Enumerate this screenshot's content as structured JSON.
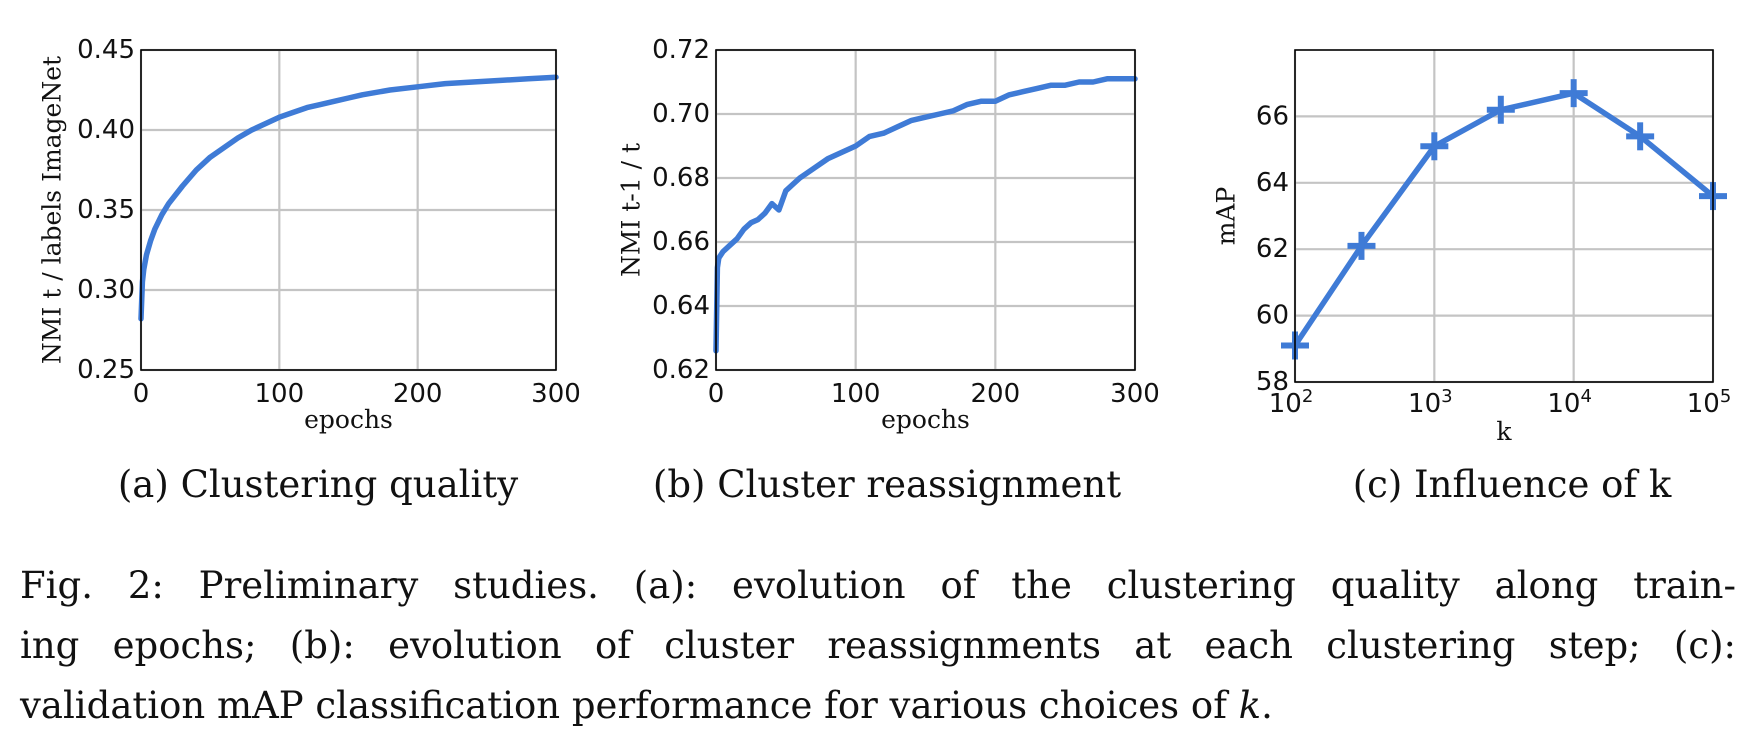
{
  "colors": {
    "series": "#3f7bd6",
    "grid": "#c4c4c4",
    "axis": "#000000"
  },
  "chart_data": [
    {
      "type": "line",
      "subcaption": "(a) Clustering quality",
      "xlabel": "epochs",
      "ylabel": "NMI t / labels ImageNet",
      "xlim": [
        0,
        300
      ],
      "ylim": [
        0.25,
        0.45
      ],
      "xticks": [
        0,
        100,
        200,
        300
      ],
      "xtick_labels": [
        "0",
        "100",
        "200",
        "300"
      ],
      "yticks": [
        0.25,
        0.3,
        0.35,
        0.4,
        0.45
      ],
      "ytick_labels": [
        "0.25",
        "0.30",
        "0.35",
        "0.40",
        "0.45"
      ],
      "grid": true,
      "series": [
        {
          "x": [
            0,
            1,
            2,
            4,
            7,
            10,
            15,
            20,
            30,
            40,
            50,
            60,
            70,
            80,
            90,
            100,
            110,
            120,
            130,
            140,
            150,
            160,
            180,
            200,
            220,
            240,
            260,
            280,
            300
          ],
          "y": [
            0.282,
            0.305,
            0.313,
            0.322,
            0.331,
            0.338,
            0.347,
            0.354,
            0.365,
            0.375,
            0.383,
            0.389,
            0.395,
            0.4,
            0.404,
            0.408,
            0.411,
            0.414,
            0.416,
            0.418,
            0.42,
            0.422,
            0.425,
            0.427,
            0.429,
            0.43,
            0.431,
            0.432,
            0.433
          ]
        }
      ]
    },
    {
      "type": "line",
      "subcaption": "(b) Cluster reassignment",
      "xlabel": "epochs",
      "ylabel": "NMI t-1 / t",
      "xlim": [
        0,
        300
      ],
      "ylim": [
        0.62,
        0.72
      ],
      "xticks": [
        0,
        100,
        200,
        300
      ],
      "xtick_labels": [
        "0",
        "100",
        "200",
        "300"
      ],
      "yticks": [
        0.62,
        0.64,
        0.66,
        0.68,
        0.7,
        0.72
      ],
      "ytick_labels": [
        "0.62",
        "0.64",
        "0.66",
        "0.68",
        "0.70",
        "0.72"
      ],
      "grid": true,
      "series": [
        {
          "x": [
            0,
            1,
            2,
            5,
            10,
            15,
            20,
            25,
            30,
            35,
            40,
            45,
            50,
            55,
            60,
            70,
            80,
            90,
            100,
            110,
            120,
            130,
            140,
            150,
            160,
            170,
            180,
            190,
            200,
            210,
            220,
            230,
            240,
            250,
            260,
            270,
            280,
            290,
            300
          ],
          "y": [
            0.626,
            0.652,
            0.655,
            0.657,
            0.659,
            0.661,
            0.664,
            0.666,
            0.667,
            0.669,
            0.672,
            0.67,
            0.676,
            0.678,
            0.68,
            0.683,
            0.686,
            0.688,
            0.69,
            0.693,
            0.694,
            0.696,
            0.698,
            0.699,
            0.7,
            0.701,
            0.703,
            0.704,
            0.704,
            0.706,
            0.707,
            0.708,
            0.709,
            0.709,
            0.71,
            0.71,
            0.711,
            0.711,
            0.711
          ]
        }
      ]
    },
    {
      "type": "line",
      "subcaption": "(c) Influence of k",
      "xlabel": "k",
      "ylabel": "mAP",
      "xscale": "log",
      "xlim": [
        100,
        100000
      ],
      "ylim": [
        58,
        68
      ],
      "xticks": [
        100,
        1000,
        10000,
        100000
      ],
      "xtick_labels": [
        {
          "base": "10",
          "exp": "2"
        },
        {
          "base": "10",
          "exp": "3"
        },
        {
          "base": "10",
          "exp": "4"
        },
        {
          "base": "10",
          "exp": "5"
        }
      ],
      "yticks": [
        58,
        60,
        62,
        64,
        66
      ],
      "ytick_labels": [
        "58",
        "60",
        "62",
        "64",
        "66"
      ],
      "grid": true,
      "marker": "plus",
      "series": [
        {
          "x": [
            100,
            300,
            1000,
            3000,
            10000,
            30000,
            100000
          ],
          "y": [
            59.1,
            62.1,
            65.1,
            66.2,
            66.7,
            65.4,
            63.6
          ]
        }
      ]
    }
  ],
  "caption": {
    "line1": "Fig. 2: Preliminary studies. (a): evolution of the clustering quality along train-",
    "line2": "ing epochs; (b): evolution of cluster reassignments at each clustering step; (c):",
    "line3_text": "validation mAP classification performance for various choices of ",
    "line3_math": "k",
    "line3_end": "."
  }
}
